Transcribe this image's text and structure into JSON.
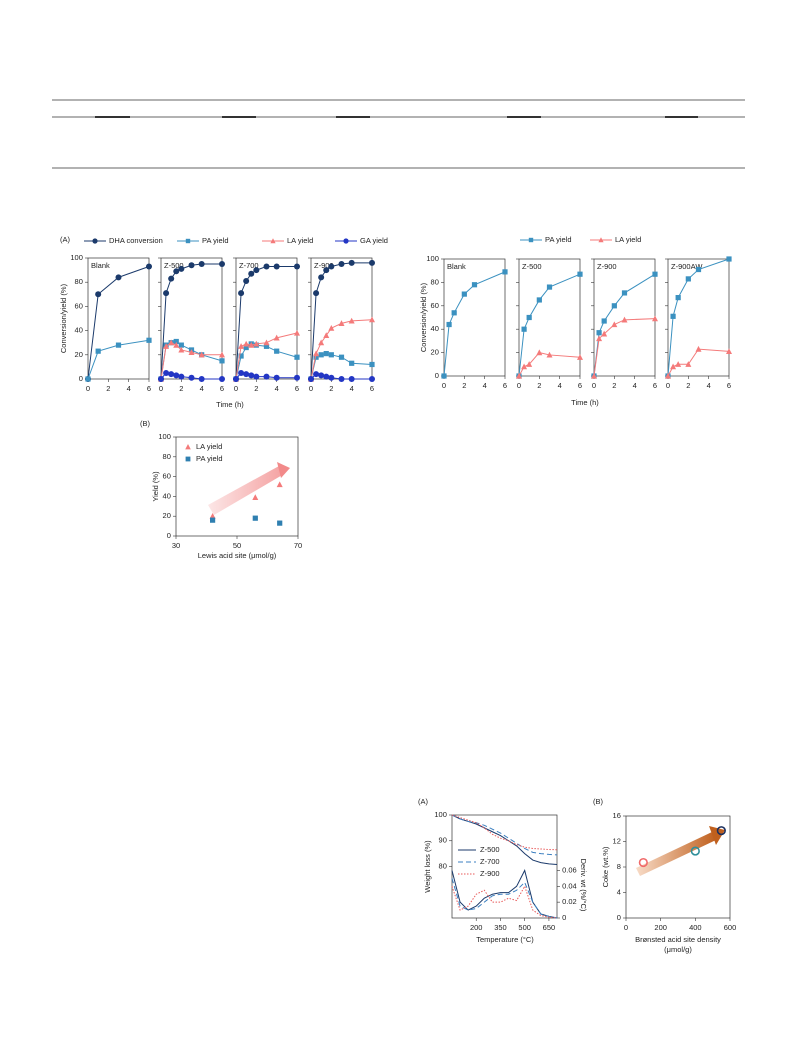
{
  "chart_data": [
    {
      "type": "line",
      "label": "(A)",
      "ylabel": "Conversion/yield (%)",
      "xlabel": "Time (h)",
      "ylim": [
        0,
        100
      ],
      "yticks": [
        0,
        20,
        40,
        60,
        80,
        100
      ],
      "xlim": [
        0,
        6
      ],
      "xticks": [
        0,
        2,
        4,
        6
      ],
      "legend": [
        {
          "name": "DHA conversion",
          "color": "#1b3a6b",
          "marker": "circle"
        },
        {
          "name": "PA yield",
          "color": "#3b91c0",
          "marker": "square"
        },
        {
          "name": "LA yield",
          "color": "#f47a7a",
          "marker": "triangle"
        },
        {
          "name": "GA yield",
          "color": "#2336c4",
          "marker": "circle"
        }
      ],
      "panels": [
        {
          "title": "Blank",
          "x": [
            0,
            1,
            3,
            6
          ],
          "series": [
            {
              "values": [
                0,
                70,
                84,
                93
              ]
            },
            {
              "values": [
                0,
                23,
                28,
                32
              ]
            }
          ]
        },
        {
          "title": "Z-500",
          "x": [
            0,
            0.5,
            1,
            1.5,
            2,
            3,
            4,
            6
          ],
          "series": [
            {
              "values": [
                0,
                71,
                83,
                89,
                91,
                94,
                95,
                95
              ]
            },
            {
              "values": [
                0,
                28,
                30,
                31,
                28,
                24,
                20,
                15
              ]
            },
            {
              "values": [
                0,
                27,
                30,
                28,
                24,
                22,
                20,
                20
              ]
            },
            {
              "values": [
                0,
                5,
                4,
                3,
                2,
                1,
                0,
                0
              ]
            }
          ]
        },
        {
          "title": "Z-700",
          "x": [
            0,
            0.5,
            1,
            1.5,
            2,
            3,
            4,
            6
          ],
          "series": [
            {
              "values": [
                0,
                71,
                81,
                87,
                90,
                93,
                93,
                93
              ]
            },
            {
              "values": [
                0,
                19,
                26,
                29,
                28,
                27,
                23,
                18
              ]
            },
            {
              "values": [
                0,
                27,
                29,
                28,
                29,
                30,
                34,
                38
              ]
            },
            {
              "values": [
                0,
                5,
                4,
                3,
                2,
                2,
                1,
                1
              ]
            }
          ]
        },
        {
          "title": "Z-900",
          "x": [
            0,
            0.5,
            1,
            1.5,
            2,
            3,
            4,
            6
          ],
          "series": [
            {
              "values": [
                0,
                71,
                84,
                90,
                93,
                95,
                96,
                96
              ]
            },
            {
              "values": [
                0,
                18,
                20,
                21,
                20,
                18,
                13,
                12
              ]
            },
            {
              "values": [
                0,
                21,
                30,
                36,
                42,
                46,
                48,
                49
              ]
            },
            {
              "values": [
                0,
                4,
                3,
                2,
                1,
                0,
                0,
                0
              ]
            }
          ]
        }
      ]
    },
    {
      "type": "scatter",
      "label": "(B)",
      "ylabel": "Yield (%)",
      "xlabel": "Lewis acid site (μmol/g)",
      "xlim": [
        30,
        70
      ],
      "xticks": [
        30,
        50,
        70
      ],
      "ylim": [
        0,
        100
      ],
      "yticks": [
        0,
        20,
        40,
        60,
        80,
        100
      ],
      "series": [
        {
          "name": "LA yield",
          "color": "#f47a7a",
          "marker": "triangle",
          "x": [
            42,
            56,
            64
          ],
          "values": [
            20,
            39,
            52
          ]
        },
        {
          "name": "PA yield",
          "color": "#2f7fb0",
          "marker": "square",
          "x": [
            42,
            56,
            64
          ],
          "values": [
            16,
            18,
            13
          ]
        }
      ]
    },
    {
      "type": "line",
      "ylabel": "Conversion/yield (%)",
      "xlabel": "Time (h)",
      "ylim": [
        0,
        100
      ],
      "yticks": [
        0,
        20,
        40,
        60,
        80,
        100
      ],
      "xlim": [
        0,
        6
      ],
      "xticks": [
        0,
        2,
        4,
        6
      ],
      "legend": [
        {
          "name": "PA yield",
          "color": "#3b91c0",
          "marker": "square"
        },
        {
          "name": "LA yield",
          "color": "#f47a7a",
          "marker": "triangle"
        }
      ],
      "panels": [
        {
          "title": "Blank",
          "x": [
            0,
            0.5,
            1,
            2,
            3,
            6
          ],
          "series": [
            {
              "values": [
                0,
                44,
                54,
                70,
                78,
                89
              ]
            }
          ]
        },
        {
          "title": "Z-500",
          "x": [
            0,
            0.5,
            1,
            2,
            3,
            6
          ],
          "series": [
            {
              "values": [
                0,
                40,
                50,
                65,
                76,
                87
              ]
            },
            {
              "values": [
                0,
                8,
                10,
                20,
                18,
                16
              ]
            }
          ]
        },
        {
          "title": "Z-900",
          "x": [
            0,
            0.5,
            1,
            2,
            3,
            6
          ],
          "series": [
            {
              "values": [
                0,
                37,
                47,
                60,
                71,
                87
              ]
            },
            {
              "values": [
                0,
                32,
                36,
                44,
                48,
                49
              ]
            }
          ]
        },
        {
          "title": "Z-900AW",
          "x": [
            0,
            0.5,
            1,
            2,
            3,
            6
          ],
          "series": [
            {
              "values": [
                0,
                51,
                67,
                83,
                91,
                100
              ]
            },
            {
              "values": [
                0,
                8,
                10,
                10,
                23,
                21
              ]
            }
          ]
        }
      ]
    },
    {
      "type": "line",
      "label": "(A)",
      "ylabel": "Weight loss (%)",
      "y2label": "Deriv. wt (%/°C)",
      "xlabel": "Temperature (°C)",
      "xlim": [
        50,
        700
      ],
      "xticks": [
        200,
        350,
        500,
        650
      ],
      "ylim": [
        60,
        100
      ],
      "yticks": [
        80,
        90,
        100
      ],
      "y2lim": [
        0,
        0.13
      ],
      "y2ticks": [
        0,
        0.02,
        0.04,
        0.06
      ],
      "x": [
        50,
        100,
        150,
        200,
        250,
        300,
        350,
        400,
        450,
        500,
        550,
        600,
        650,
        700
      ],
      "series": [
        {
          "name": "Z-500",
          "color": "#1b3a6b",
          "dash": "solid",
          "values": [
            100,
            98.5,
            97.5,
            96.5,
            95,
            93.5,
            92,
            90,
            88,
            85,
            82.5,
            81.5,
            81,
            80.8
          ],
          "y2_values": [
            0.06,
            0.02,
            0.01,
            0.015,
            0.025,
            0.03,
            0.032,
            0.032,
            0.04,
            0.06,
            0.02,
            0.005,
            0.002,
            0
          ]
        },
        {
          "name": "Z-700",
          "color": "#3b7fc0",
          "dash": "dashed",
          "values": [
            100,
            98.5,
            97.5,
            97,
            96,
            94.5,
            93,
            91,
            89,
            87,
            85.5,
            85,
            84.7,
            84.5
          ],
          "y2_values": [
            0.05,
            0.015,
            0.01,
            0.012,
            0.02,
            0.028,
            0.03,
            0.03,
            0.035,
            0.045,
            0.02,
            0.005,
            0.002,
            0
          ]
        },
        {
          "name": "Z-900",
          "color": "#e85a5a",
          "dash": "dotted",
          "values": [
            100,
            99,
            98,
            97,
            95,
            92.5,
            91,
            90,
            88.5,
            87.5,
            87,
            86.8,
            86.6,
            86.5
          ],
          "y2_values": [
            0.04,
            0.01,
            0.015,
            0.03,
            0.035,
            0.02,
            0.02,
            0.025,
            0.022,
            0.04,
            0.01,
            0.003,
            0.001,
            0
          ]
        }
      ]
    },
    {
      "type": "scatter",
      "label": "(B)",
      "ylabel": "Coke (wt.%)",
      "xlabel": [
        "Brønsted acid site density",
        "(μmol/g)"
      ],
      "xlim": [
        0,
        600
      ],
      "xticks": [
        0,
        200,
        400,
        600
      ],
      "ylim": [
        0,
        16
      ],
      "yticks": [
        0,
        4,
        8,
        12,
        16
      ],
      "series": [
        {
          "x": [
            100,
            400,
            550
          ],
          "values": [
            8.7,
            10.5,
            13.7
          ],
          "colors": [
            "#f06a6a",
            "#2f8f9a",
            "#1b2f5e"
          ],
          "marker": "ring"
        }
      ]
    }
  ]
}
